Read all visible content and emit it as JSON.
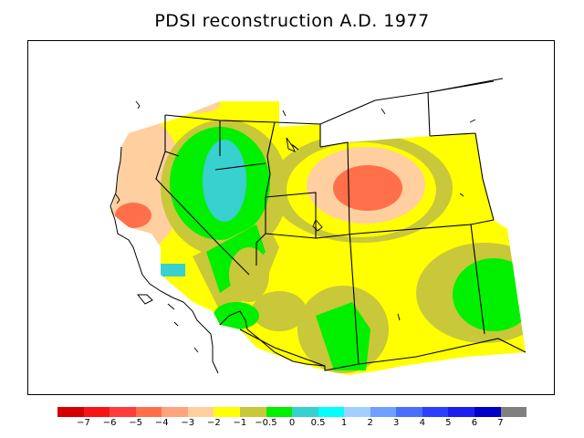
{
  "title": "PDSI reconstruction A.D. 1977",
  "legend": {
    "colors": [
      "#d40000",
      "#f51515",
      "#ff3b3b",
      "#ff6f4a",
      "#ffa47c",
      "#ffcfa0",
      "#ffff00",
      "#c8c83a",
      "#00f000",
      "#39d0d0",
      "#00ffff",
      "#a2cfff",
      "#6f9fff",
      "#4a6fff",
      "#2a3fff",
      "#1a1ff0",
      "#0000c8",
      "#808080"
    ],
    "labels": [
      "−7",
      "−6",
      "−5",
      "−4",
      "−3",
      "−2",
      "−1",
      "−0.5",
      "0",
      "0.5",
      "1",
      "2",
      "3",
      "4",
      "5",
      "6",
      "7"
    ]
  }
}
